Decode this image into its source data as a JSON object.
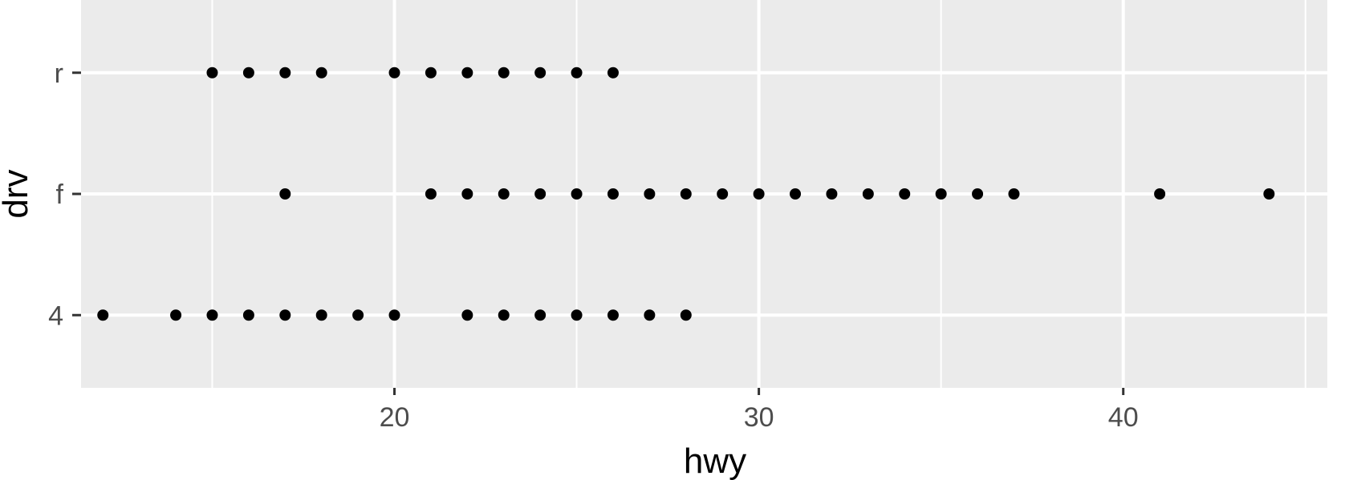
{
  "chart_data": {
    "type": "scatter",
    "xlabel": "hwy",
    "ylabel": "drv",
    "xlim": [
      11.4,
      45.6
    ],
    "x_major_ticks": [
      20,
      30,
      40
    ],
    "x_minor_ticks": [
      15,
      25,
      35,
      45
    ],
    "categories": [
      "4",
      "f",
      "r"
    ],
    "grid": true,
    "legend": "none",
    "colors": {
      "panel_background": "#EBEBEB",
      "grid": "#FFFFFF",
      "point": "#000000",
      "tick_label": "#4D4D4D",
      "tick_mark": "#333333",
      "axis_title": "#000000"
    },
    "series": [
      {
        "category": "4",
        "x": [
          12,
          14,
          15,
          16,
          17,
          18,
          19,
          20,
          22,
          23,
          24,
          25,
          26,
          27,
          28
        ]
      },
      {
        "category": "f",
        "x": [
          17,
          21,
          22,
          23,
          24,
          25,
          26,
          27,
          28,
          29,
          30,
          31,
          32,
          33,
          34,
          35,
          36,
          37,
          41,
          44
        ]
      },
      {
        "category": "r",
        "x": [
          15,
          16,
          17,
          18,
          20,
          21,
          22,
          23,
          24,
          25,
          26
        ]
      }
    ]
  }
}
